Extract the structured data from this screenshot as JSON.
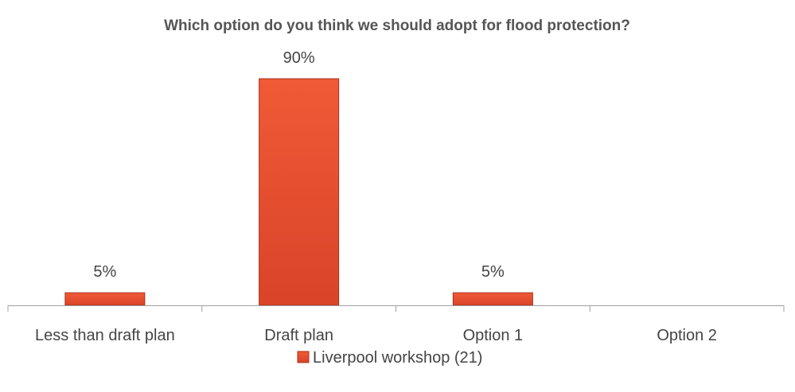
{
  "chart_data": {
    "type": "bar",
    "title": "Which option do you think we should adopt for flood protection?",
    "categories": [
      "Less than draft plan",
      "Draft plan",
      "Option 1",
      "Option 2"
    ],
    "series": [
      {
        "name": "Liverpool workshop (21)",
        "values": [
          5,
          90,
          5,
          null
        ],
        "labels": [
          "5%",
          "90%",
          "5%",
          ""
        ],
        "color": "#e8502e"
      }
    ],
    "xlabel": "",
    "ylabel": "",
    "ylim": [
      0,
      100
    ],
    "grid": false,
    "legend_position": "bottom"
  }
}
